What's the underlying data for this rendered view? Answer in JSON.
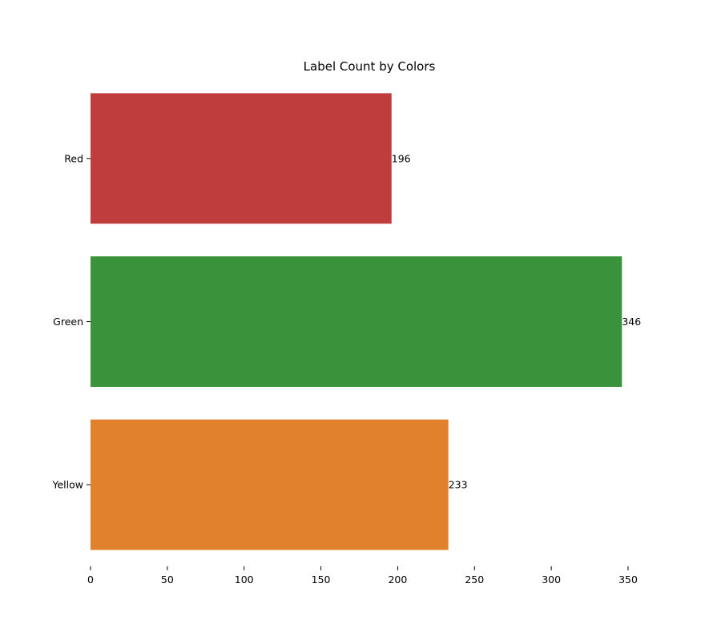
{
  "chart_data": {
    "type": "bar",
    "orientation": "horizontal",
    "title": "Label Count by Colors",
    "xlabel": "",
    "ylabel": "",
    "categories": [
      "Red",
      "Green",
      "Yellow"
    ],
    "values": [
      196,
      346,
      233
    ],
    "data_labels": [
      "196",
      "346",
      "233"
    ],
    "colors": [
      "#c03d3e",
      "#3a923a",
      "#e1812c"
    ],
    "xlim": [
      0,
      350
    ],
    "xticks": [
      0,
      50,
      100,
      150,
      200,
      250,
      300,
      350
    ],
    "grid": false,
    "legend": "none"
  }
}
